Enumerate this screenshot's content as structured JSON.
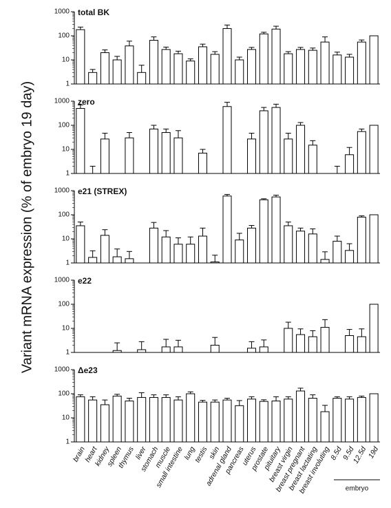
{
  "chart_data": [
    {
      "type": "bar",
      "title": "total BK",
      "ylabel": "Variant mRNA expression (% of embryo 19 day)",
      "log_scale": true,
      "ylim": [
        1,
        1000
      ],
      "yticks": [
        1,
        10,
        100,
        1000
      ],
      "color": "#ffffff",
      "values": [
        180,
        3,
        20,
        10,
        38,
        3,
        65,
        27,
        18,
        9,
        35,
        17,
        200,
        10,
        27,
        120,
        190,
        18,
        27,
        25,
        55,
        16,
        13,
        55,
        100
      ],
      "errors": [
        50,
        1,
        6,
        4,
        22,
        3,
        25,
        7,
        5,
        2,
        10,
        5,
        80,
        3,
        6,
        20,
        60,
        4,
        6,
        6,
        35,
        5,
        4,
        12,
        null
      ]
    },
    {
      "type": "bar",
      "title": "zero",
      "log_scale": true,
      "ylim": [
        1,
        1000
      ],
      "yticks": [
        1,
        10,
        100,
        1000
      ],
      "color": "#ffffff",
      "values": [
        500,
        1,
        27,
        null,
        30,
        null,
        70,
        50,
        30,
        null,
        7,
        null,
        600,
        null,
        27,
        400,
        550,
        27,
        100,
        15,
        null,
        1,
        6,
        55,
        100
      ],
      "errors": [
        200,
        1,
        20,
        null,
        20,
        null,
        30,
        20,
        30,
        null,
        3,
        null,
        300,
        null,
        20,
        150,
        200,
        20,
        30,
        8,
        null,
        1,
        6,
        15,
        null
      ]
    },
    {
      "type": "bar",
      "title": "e21 (STREX)",
      "log_scale": true,
      "ylim": [
        1,
        1000
      ],
      "yticks": [
        1,
        10,
        100,
        1000
      ],
      "color": "#ffffff",
      "values": [
        35,
        1.7,
        14,
        1.8,
        1.5,
        null,
        28,
        12,
        6,
        6,
        13,
        1.1,
        600,
        9,
        28,
        420,
        550,
        35,
        21,
        16,
        1.4,
        8,
        3.3,
        80,
        100
      ],
      "errors": [
        15,
        1.5,
        10,
        2,
        1.5,
        null,
        20,
        10,
        5,
        6,
        15,
        1,
        100,
        8,
        8,
        40,
        100,
        15,
        7,
        10,
        1.5,
        5,
        3,
        10,
        null
      ]
    },
    {
      "type": "bar",
      "title": "e22",
      "log_scale": true,
      "ylim": [
        1,
        1000
      ],
      "yticks": [
        1,
        10,
        100,
        1000
      ],
      "color": "#ffffff",
      "values": [
        null,
        null,
        null,
        1.2,
        null,
        1.3,
        null,
        1.7,
        1.7,
        null,
        null,
        2,
        null,
        null,
        1.5,
        1.7,
        null,
        10,
        5.5,
        4.5,
        11,
        null,
        5,
        4.5,
        100
      ],
      "errors": [
        null,
        null,
        null,
        1.3,
        null,
        1.5,
        null,
        1.8,
        1.5,
        null,
        null,
        2.2,
        null,
        null,
        1.3,
        1.6,
        null,
        8,
        4,
        3.5,
        12,
        null,
        4,
        5,
        null
      ]
    },
    {
      "type": "bar",
      "title": "Δe23",
      "log_scale": true,
      "ylim": [
        1,
        1000
      ],
      "yticks": [
        1,
        10,
        100,
        1000
      ],
      "color": "#ffffff",
      "categories": [
        "brain",
        "heart",
        "kidney",
        "spleen",
        "thymus",
        "liver",
        "stomach",
        "muscle",
        "small intestine",
        "lung",
        "testis",
        "skin",
        "adrenal gland",
        "pancreas",
        "uterus",
        "prostate",
        "pituitary",
        "breast virgin",
        "breast pregnant",
        "breast lactating",
        "breast involuting",
        "8.5d",
        "9.5d",
        "12.5d",
        "19d"
      ],
      "annotation": "embryo",
      "values": [
        75,
        55,
        35,
        80,
        50,
        70,
        70,
        70,
        55,
        100,
        45,
        45,
        55,
        32,
        60,
        48,
        50,
        60,
        130,
        65,
        18,
        65,
        60,
        70,
        100
      ],
      "errors": [
        15,
        20,
        20,
        15,
        15,
        40,
        20,
        20,
        20,
        20,
        8,
        10,
        10,
        20,
        15,
        8,
        25,
        15,
        40,
        25,
        15,
        10,
        15,
        10,
        null
      ]
    }
  ]
}
